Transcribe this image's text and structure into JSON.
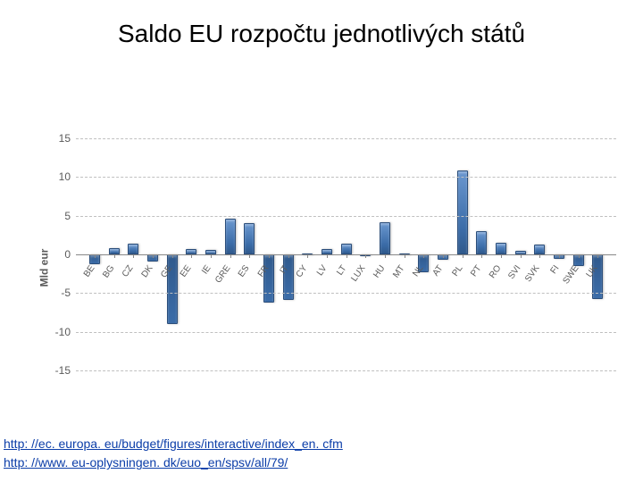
{
  "title": "Saldo EU rozpočtu jednotlivých států",
  "chart": {
    "type": "bar",
    "ylabel": "Mld eur",
    "ylim": [
      -15,
      15
    ],
    "ytick_step": 5,
    "grid_color": "#c0c0c0",
    "axis_color": "#888888",
    "background_color": "#ffffff",
    "bar_color": "#3b6ca8",
    "bar_border": "#2a4d7a",
    "label_fontsize": 10,
    "tick_fontsize": 12,
    "categories": [
      "BE",
      "BG",
      "CZ",
      "DK",
      "GE",
      "EE",
      "IE",
      "GRE",
      "ES",
      "FR",
      "IT",
      "CY",
      "LV",
      "LT",
      "LUX",
      "HU",
      "MT",
      "NL",
      "AT",
      "PL",
      "PT",
      "RO",
      "SVI",
      "SVK",
      "FI",
      "SWE",
      "UK"
    ],
    "values": [
      -1.3,
      0.8,
      1.4,
      -0.9,
      -9.0,
      0.7,
      0.6,
      4.6,
      4.0,
      -6.2,
      -5.9,
      0.1,
      0.7,
      1.4,
      -0.1,
      4.2,
      0.1,
      -2.3,
      -0.7,
      10.9,
      3.0,
      1.5,
      0.5,
      1.3,
      -0.6,
      -1.5,
      -5.8
    ]
  },
  "links": {
    "url1": "http: //ec. europa. eu/budget/figures/interactive/index_en. cfm",
    "url2": "http: //www. eu-oplysningen. dk/euo_en/spsv/all/79/"
  }
}
